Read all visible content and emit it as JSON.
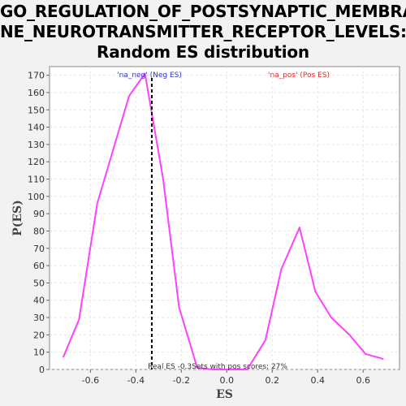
{
  "title_lines": [
    "GO_REGULATION_OF_POSTSYNAPTIC_MEMBRA",
    "NE_NEUROTRANSMITTER_RECEPTOR_LEVELS:",
    "Random ES distribution"
  ],
  "chart_data": {
    "type": "line",
    "xlabel": "ES",
    "ylabel": "P(ES)",
    "xlim": [
      -0.78,
      0.76
    ],
    "ylim": [
      0,
      175
    ],
    "xticks": [
      -0.6,
      -0.4,
      -0.2,
      0.0,
      0.2,
      0.4,
      0.6
    ],
    "xtick_labels": [
      "-0.6",
      "-0.4",
      "-0.2",
      "0.0",
      "0.2",
      "0.4",
      "0.6"
    ],
    "yticks": [
      0,
      10,
      20,
      30,
      40,
      50,
      60,
      70,
      80,
      90,
      100,
      110,
      120,
      130,
      140,
      150,
      160,
      170
    ],
    "grid": true,
    "series": [
      {
        "color": "#ff40ff",
        "x": [
          -0.72,
          -0.65,
          -0.57,
          -0.5,
          -0.43,
          -0.36,
          -0.28,
          -0.21,
          -0.13,
          -0.06,
          0.02,
          0.09,
          0.17,
          0.24,
          0.32,
          0.39,
          0.46,
          0.54,
          0.61,
          0.69
        ],
        "y": [
          7,
          29,
          96,
          127,
          158,
          171,
          110,
          36,
          1,
          0,
          0,
          0,
          17,
          58,
          82,
          45,
          30,
          20,
          9,
          6
        ]
      }
    ],
    "real_es": -0.33,
    "annotations": {
      "neg": {
        "text": "'na_neg' (Neg ES)",
        "color": "#3333cc"
      },
      "pos": {
        "text": "'na_pos' (Pos ES)",
        "color": "#e03030"
      },
      "bottom": {
        "text": "Real ES -0.3Sets with pos scores: 27%",
        "color": "#333333"
      }
    }
  }
}
